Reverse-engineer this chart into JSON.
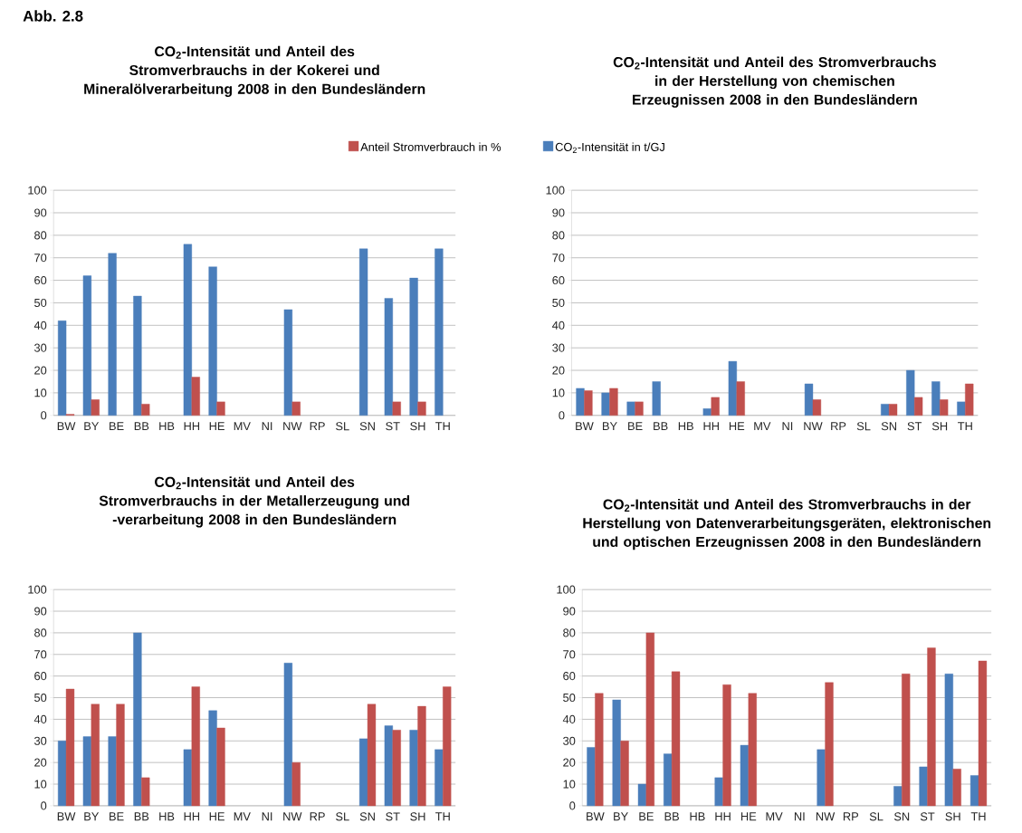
{
  "chart_data": [
    {
      "type": "bar",
      "title": "CO$_{2}$-Intensität und Anteil des Stromverbrauchs in der Kokerei und Mineralölverarbeitung 2008 in den Bundesländern",
      "annotations": [
        "Abb. 2.8"
      ],
      "categories": [
        "BW",
        "BY",
        "BE",
        "BB",
        "HB",
        "HH",
        "HE",
        "MV",
        "NI",
        "NW",
        "RP",
        "SL",
        "SN",
        "ST",
        "SH",
        "TH"
      ],
      "series": [
        {
          "name": "CO$_{2}$-Intensität in t/GJ",
          "color": "#4a7ebb",
          "values": [
            42,
            62,
            72,
            53,
            null,
            76,
            66,
            null,
            null,
            47,
            null,
            null,
            74,
            52,
            61,
            74
          ]
        },
        {
          "name": "Anteil Stromverbrauch in %",
          "color": "#c0504d",
          "values": [
            0.5,
            7,
            null,
            5,
            null,
            17,
            6,
            null,
            null,
            6,
            null,
            null,
            null,
            6,
            6,
            null
          ]
        }
      ],
      "ylim": [
        0,
        100
      ],
      "yticks": [
        0,
        10,
        20,
        30,
        40,
        50,
        60,
        70,
        80,
        90,
        100
      ],
      "grid": "y",
      "legend": "top"
    },
    {
      "type": "bar",
      "title": "CO$_{2}$-Intensität und Anteil des Stromverbrauchs in der Herstellung von chemischen Erzeugnissen 2008 in den Bundesländern",
      "categories": [
        "BW",
        "BY",
        "BE",
        "BB",
        "HB",
        "HH",
        "HE",
        "MV",
        "NI",
        "NW",
        "RP",
        "SL",
        "SN",
        "ST",
        "SH",
        "TH"
      ],
      "series": [
        {
          "color": "#4a7ebb",
          "values": [
            12,
            10,
            6,
            15,
            null,
            3,
            24,
            null,
            null,
            14,
            null,
            null,
            5,
            20,
            15,
            6
          ]
        },
        {
          "color": "#c0504d",
          "values": [
            11,
            12,
            6,
            null,
            null,
            8,
            15,
            null,
            null,
            7,
            null,
            null,
            5,
            8,
            7,
            14
          ]
        }
      ],
      "ylim": [
        0,
        100
      ],
      "yticks": [
        0,
        10,
        20,
        30,
        40,
        50,
        60,
        70,
        80,
        90,
        100
      ],
      "grid": "y"
    },
    {
      "type": "bar",
      "title": "CO$_{2}$-Intensität und Anteil des Stromverbrauchs in der Metallerzeugung und -verarbeitung 2008 in den Bundesländern",
      "categories": [
        "BW",
        "BY",
        "BE",
        "BB",
        "HB",
        "HH",
        "HE",
        "MV",
        "NI",
        "NW",
        "RP",
        "SL",
        "SN",
        "ST",
        "SH",
        "TH"
      ],
      "series": [
        {
          "color": "#4a7ebb",
          "values": [
            30,
            32,
            32,
            80,
            null,
            26,
            44,
            null,
            null,
            66,
            null,
            null,
            31,
            37,
            35,
            26
          ]
        },
        {
          "color": "#c0504d",
          "values": [
            54,
            47,
            47,
            13,
            null,
            55,
            36,
            null,
            null,
            20,
            null,
            null,
            47,
            35,
            46,
            55
          ]
        }
      ],
      "ylim": [
        0,
        100
      ],
      "yticks": [
        0,
        10,
        20,
        30,
        40,
        50,
        60,
        70,
        80,
        90,
        100
      ],
      "grid": "y"
    },
    {
      "type": "bar",
      "title": "CO$_{2}$-Intensität und Anteil des Stromverbrauchs in der Herstellung von Datenverarbeitungsgeräten, elektronischen und optischen Erzeugnissen 2008 in den Bundesländern",
      "categories": [
        "BW",
        "BY",
        "BE",
        "BB",
        "HB",
        "HH",
        "HE",
        "MV",
        "NI",
        "NW",
        "RP",
        "SL",
        "SN",
        "ST",
        "SH",
        "TH"
      ],
      "series": [
        {
          "color": "#4a7ebb",
          "values": [
            27,
            49,
            10,
            24,
            null,
            13,
            28,
            null,
            null,
            26,
            null,
            null,
            9,
            18,
            61,
            14
          ]
        },
        {
          "color": "#c0504d",
          "values": [
            52,
            30,
            80,
            62,
            null,
            56,
            52,
            null,
            null,
            57,
            null,
            null,
            61,
            73,
            17,
            67
          ]
        }
      ],
      "ylim": [
        0,
        100
      ],
      "yticks": [
        0,
        10,
        20,
        30,
        40,
        50,
        60,
        70,
        80,
        90,
        100
      ],
      "grid": "y"
    }
  ]
}
